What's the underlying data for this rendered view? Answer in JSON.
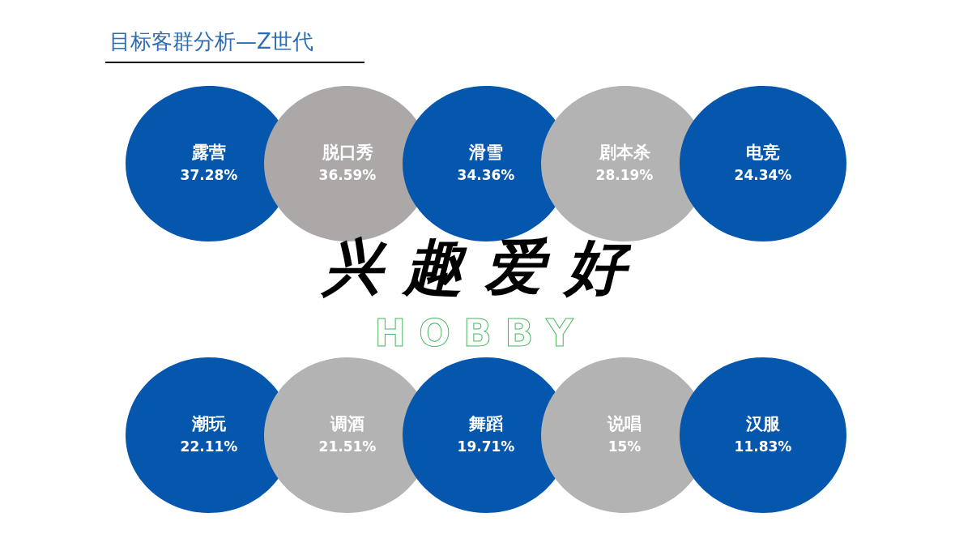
{
  "chart_data": {
    "type": "other",
    "title": "目标客群分析—Z世代",
    "categories": [
      "露营",
      "脱口秀",
      "滑雪",
      "剧本杀",
      "电竞",
      "潮玩",
      "调酒",
      "舞蹈",
      "说唱",
      "汉服"
    ],
    "values": [
      37.28,
      36.59,
      34.36,
      28.19,
      24.34,
      22.11,
      21.51,
      19.71,
      15,
      11.83
    ],
    "value_labels": [
      "37.28%",
      "36.59%",
      "34.36%",
      "28.19%",
      "24.34%",
      "22.11%",
      "21.51%",
      "19.71%",
      "15%",
      "11.83%"
    ],
    "colors": [
      "#0556ad",
      "#aca8a8",
      "#0556ad",
      "#b3b3b3",
      "#0556ad",
      "#0556ad",
      "#b3b3b3",
      "#0556ad",
      "#b3b3b3",
      "#0556ad"
    ],
    "annotations": [
      "兴 趣 爱 好",
      "H O B B Y"
    ]
  }
}
